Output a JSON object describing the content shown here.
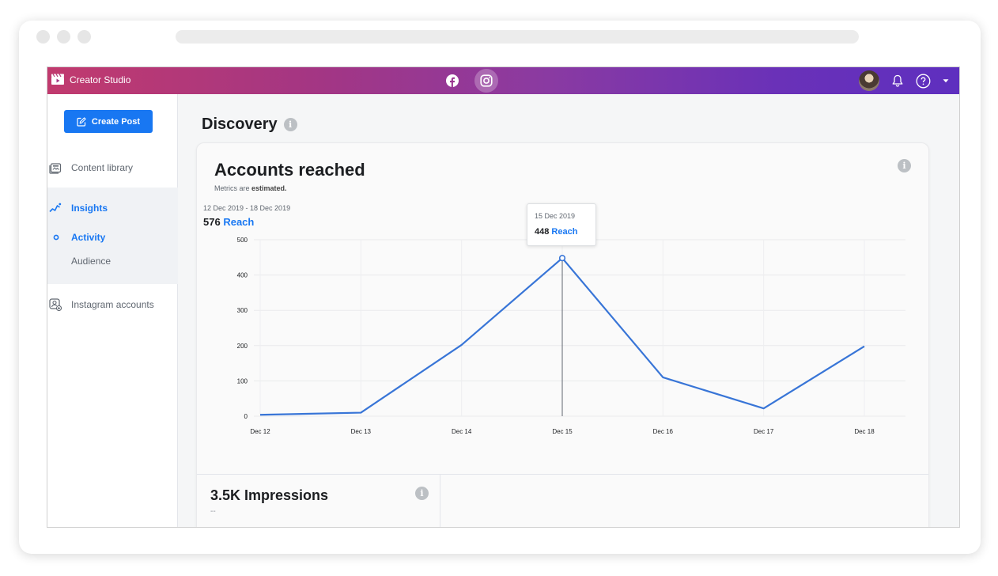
{
  "app": {
    "title": "Creator Studio"
  },
  "topbar": {
    "platforms": [
      "facebook-icon",
      "instagram-icon"
    ],
    "active_platform": "instagram"
  },
  "sidebar": {
    "create_post": "Create Post",
    "items": [
      {
        "label": "Content library",
        "icon": "content-library-icon"
      },
      {
        "label": "Insights",
        "icon": "insights-icon",
        "active": true
      },
      {
        "label": "Activity",
        "active": true
      },
      {
        "label": "Audience"
      },
      {
        "label": "Instagram accounts",
        "icon": "instagram-accounts-icon"
      }
    ]
  },
  "main": {
    "title": "Discovery",
    "card": {
      "title": "Accounts reached",
      "note_prefix": "Metrics are ",
      "note_bold": "estimated.",
      "date_range": "12 Dec 2019 - 18 Dec 2019",
      "total_value": "576",
      "total_label": "Reach",
      "tooltip": {
        "date": "15 Dec 2019",
        "value": "448",
        "label": "Reach"
      }
    },
    "impressions": {
      "title": "3.5K Impressions",
      "subtitle": "--"
    }
  },
  "colors": {
    "accent": "#1877f2",
    "line": "#3875d7",
    "gradient_start": "#c13a6e",
    "gradient_end": "#5e2fbf"
  },
  "chart_data": {
    "type": "line",
    "categories": [
      "Dec 12",
      "Dec 13",
      "Dec 14",
      "Dec 15",
      "Dec 16",
      "Dec 17",
      "Dec 18"
    ],
    "series": [
      {
        "values": [
          4,
          10,
          202,
          448,
          110,
          22,
          198
        ]
      }
    ],
    "yticks": [
      0,
      100,
      200,
      300,
      400,
      500
    ],
    "ylim": [
      0,
      500
    ],
    "grid": true,
    "highlight_index": 3
  }
}
